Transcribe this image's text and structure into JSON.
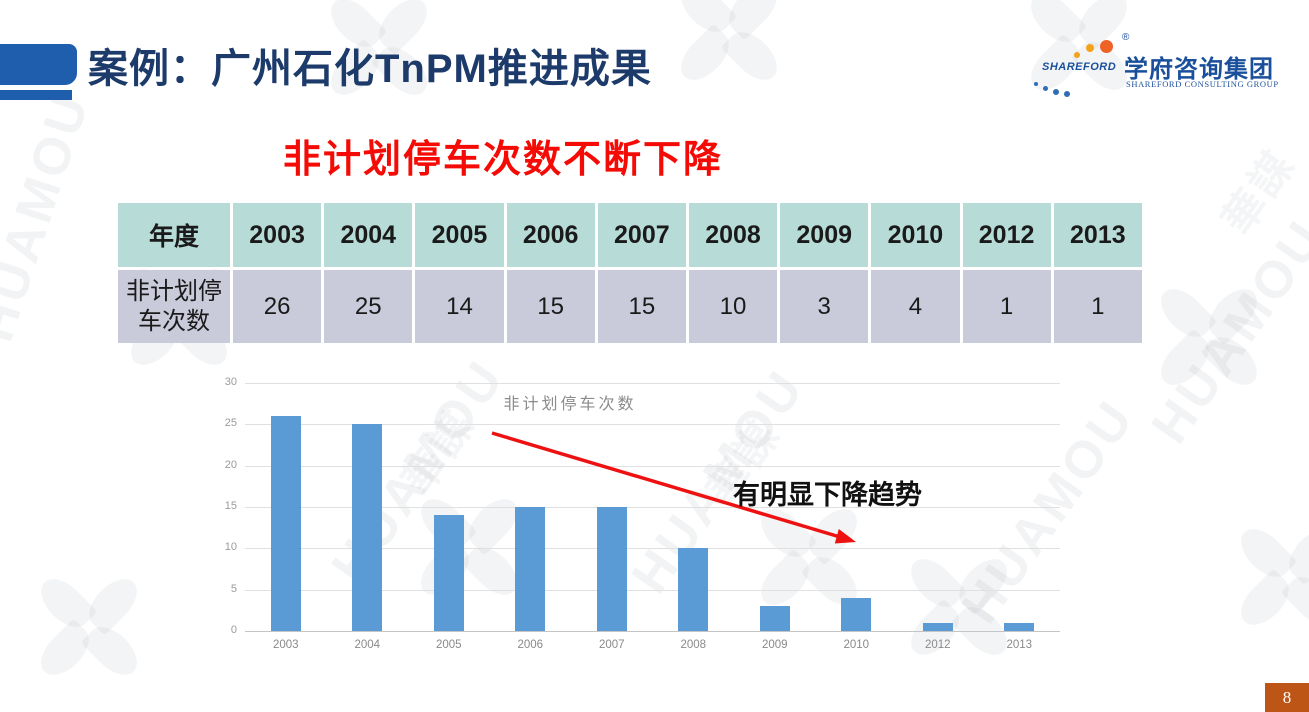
{
  "slide": {
    "title": "案例：广州石化TnPM推进成果",
    "subtitle": "非计划停车次数不断下降",
    "page_number": "8"
  },
  "logo": {
    "wordmark": "SHAREFORD",
    "registered_mark": "®",
    "name_cn": "学府咨询集团",
    "name_en": "SHAREFORD CONSULTING GROUP"
  },
  "table": {
    "header_label": "年度",
    "row_label": "非计划停车次数",
    "years": [
      "2003",
      "2004",
      "2005",
      "2006",
      "2007",
      "2008",
      "2009",
      "2010",
      "2012",
      "2013"
    ],
    "values": [
      "26",
      "25",
      "14",
      "15",
      "15",
      "10",
      "3",
      "4",
      "1",
      "1"
    ]
  },
  "chart_data": {
    "type": "bar",
    "title": "非计划停车次数",
    "categories": [
      "2003",
      "2004",
      "2005",
      "2006",
      "2007",
      "2008",
      "2009",
      "2010",
      "2012",
      "2013"
    ],
    "values": [
      26,
      25,
      14,
      15,
      15,
      10,
      3,
      4,
      1,
      1
    ],
    "xlabel": "",
    "ylabel": "",
    "ylim": [
      0,
      30
    ],
    "yticks": [
      0,
      5,
      10,
      15,
      20,
      25,
      30
    ],
    "grid": true,
    "legend": false,
    "annotation": "有明显下降趋势"
  },
  "watermark": {
    "text_en": "HUAMOU",
    "text_cn": "華謀"
  },
  "theme": {
    "accent_blue": "#1e5ead",
    "title_navy": "#1c3a6a",
    "alert_red": "#f40b06",
    "bar_blue": "#5b9bd5",
    "table_header_bg": "#b7dcd8",
    "table_row_bg": "#c9cada",
    "badge_bg": "#bc5515",
    "logo_blue": "#1a4f9c",
    "arrow_red": "#ee1111"
  }
}
